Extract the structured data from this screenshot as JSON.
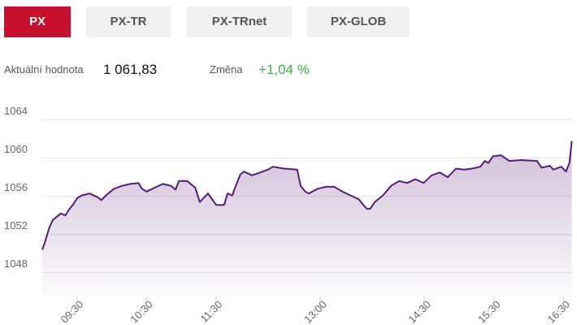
{
  "tabs": [
    {
      "label": "PX",
      "active": true
    },
    {
      "label": "PX-TR",
      "active": false
    },
    {
      "label": "PX-TRnet",
      "active": false
    },
    {
      "label": "PX-GLOB",
      "active": false
    }
  ],
  "stats": [
    {
      "label": "Aktuální hodnota",
      "value": "1 061,83",
      "color": "#111111"
    },
    {
      "label": "Změna",
      "value": "+1,04 %",
      "color": "#3fb045"
    }
  ],
  "chart_data": {
    "type": "area",
    "color": "#5a1a78",
    "grid": true,
    "x": [
      "09:00",
      "09:02",
      "09:06",
      "09:09",
      "09:13",
      "09:16",
      "09:20",
      "09:23",
      "09:27",
      "09:30",
      "09:34",
      "09:41",
      "09:48",
      "09:51",
      "09:55",
      "09:58",
      "10:02",
      "10:09",
      "10:16",
      "10:23",
      "10:26",
      "10:30",
      "10:37",
      "10:44",
      "10:51",
      "10:55",
      "10:58",
      "11:05",
      "11:12",
      "11:16",
      "11:19",
      "11:23",
      "11:26",
      "11:30",
      "11:37",
      "11:40",
      "11:44",
      "11:47",
      "11:51",
      "11:54",
      "12:01",
      "12:08",
      "12:15",
      "12:19",
      "12:29",
      "12:40",
      "12:43",
      "12:47",
      "12:50",
      "12:58",
      "13:05",
      "13:12",
      "13:19",
      "13:26",
      "13:33",
      "13:40",
      "13:43",
      "13:47",
      "13:54",
      "14:01",
      "14:08",
      "14:15",
      "14:22",
      "14:29",
      "14:36",
      "14:43",
      "14:50",
      "14:57",
      "15:04",
      "15:11",
      "15:18",
      "15:22",
      "15:25",
      "15:29",
      "15:36",
      "15:43",
      "15:53",
      "16:07",
      "16:11",
      "16:18",
      "16:21",
      "16:28",
      "16:32",
      "16:35",
      "16:37"
    ],
    "values": [
      1050.4,
      1051.1,
      1052.7,
      1053.5,
      1053.9,
      1054.2,
      1054.0,
      1054.6,
      1055.2,
      1055.8,
      1056.1,
      1056.3,
      1055.9,
      1055.6,
      1056.1,
      1056.4,
      1056.8,
      1057.1,
      1057.3,
      1057.4,
      1056.8,
      1056.5,
      1056.9,
      1057.3,
      1057.1,
      1056.7,
      1057.6,
      1057.6,
      1056.9,
      1055.4,
      1055.8,
      1056.3,
      1055.8,
      1055.1,
      1055.1,
      1056.3,
      1056.1,
      1057.1,
      1058.3,
      1058.6,
      1058.2,
      1058.5,
      1058.8,
      1059.1,
      1058.9,
      1058.8,
      1057.1,
      1056.5,
      1056.3,
      1056.8,
      1057.0,
      1057.0,
      1056.5,
      1056.1,
      1055.7,
      1054.7,
      1054.7,
      1055.4,
      1056.1,
      1057.1,
      1057.6,
      1057.4,
      1057.8,
      1057.4,
      1058.2,
      1058.5,
      1058.0,
      1058.9,
      1058.8,
      1058.9,
      1059.1,
      1059.7,
      1059.5,
      1060.2,
      1060.3,
      1059.7,
      1059.8,
      1059.7,
      1059.0,
      1059.2,
      1058.8,
      1059.1,
      1058.6,
      1059.5,
      1061.8
    ],
    "xlim": [
      "09:00",
      "16:38"
    ],
    "xticks": [
      "09:30",
      "10:30",
      "11:30",
      "13:00",
      "14:30",
      "15:30",
      "16:30"
    ],
    "ylim": [
      1045.5,
      1065.5
    ],
    "yticks": [
      1048,
      1052,
      1056,
      1060,
      1064
    ]
  }
}
